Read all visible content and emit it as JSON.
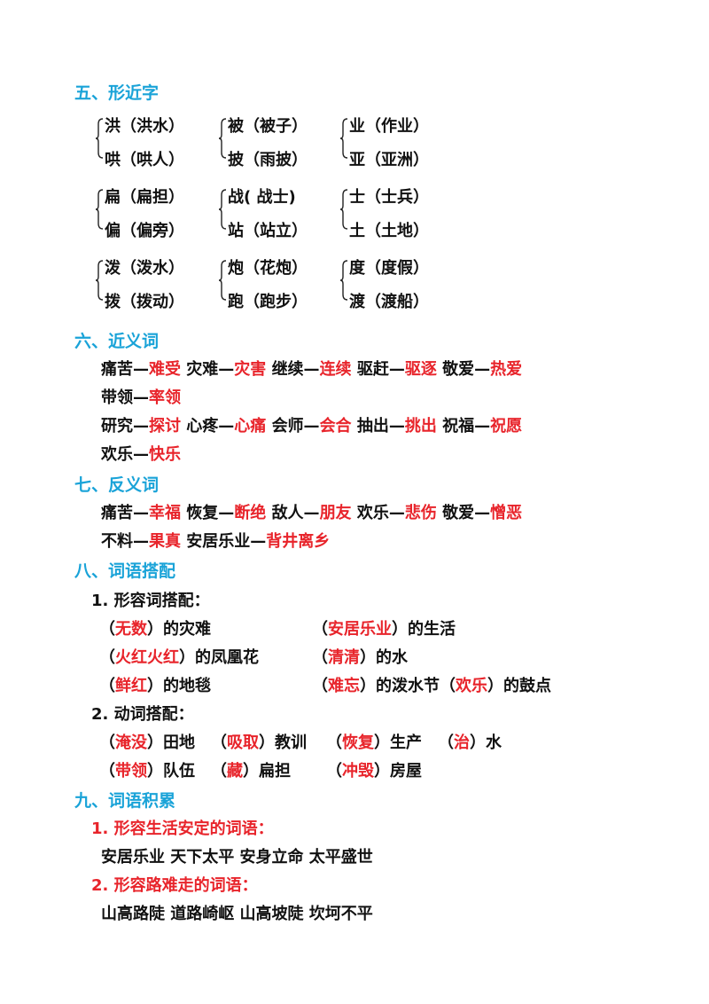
{
  "sections": {
    "s5": "五、形近字",
    "s6": "六、近义词",
    "s7": "七、反义词",
    "s8": "八、词语搭配",
    "s9": "九、词语积累"
  },
  "xingjin": [
    {
      "groups": [
        [
          "洪（洪水）",
          "哄（哄人）"
        ],
        [
          "被（被子）",
          "披（雨披）"
        ],
        [
          "业（作业）",
          "亚（亚洲）"
        ]
      ]
    },
    {
      "groups": [
        [
          "扁（扁担）",
          "偏（偏旁）"
        ],
        [
          "战( 战士)",
          "站（站立）"
        ],
        [
          "士（士兵）",
          "土（土地）"
        ]
      ]
    },
    {
      "groups": [
        [
          "泼（泼水）",
          "拨（拨动）"
        ],
        [
          "炮（花炮）",
          "跑（跑步）"
        ],
        [
          "度（度假）",
          "渡（渡船）"
        ]
      ]
    }
  ],
  "jinyi": [
    [
      [
        "痛苦—",
        "难受"
      ],
      [
        "灾难—",
        "灾害"
      ],
      [
        "继续—",
        "连续"
      ],
      [
        "驱赶—",
        "驱逐"
      ],
      [
        "敬爱—",
        "热爱"
      ]
    ],
    [
      [
        "带领—",
        "率领"
      ]
    ],
    [
      [
        "研究—",
        "探讨"
      ],
      [
        "心疼—",
        "心痛"
      ],
      [
        "会师—",
        "会合"
      ],
      [
        "抽出—",
        "挑出"
      ],
      [
        "祝福—",
        "祝愿"
      ]
    ],
    [
      [
        "欢乐—",
        "快乐"
      ]
    ]
  ],
  "fanyi": [
    [
      [
        "痛苦—",
        "幸福"
      ],
      [
        "恢复—",
        "断绝"
      ],
      [
        "敌人—",
        "朋友"
      ],
      [
        "欢乐—",
        "悲伤"
      ],
      [
        "敬爱—",
        "憎恶"
      ]
    ],
    [
      [
        "不料—",
        "果真"
      ],
      [
        "安居乐业—",
        "背井离乡"
      ]
    ]
  ],
  "dapei": {
    "adj_title": "1. 形容词搭配：",
    "adj": [
      [
        [
          "（",
          "无数",
          "）的灾难"
        ],
        [
          "（",
          "安居乐业",
          "）的生活"
        ]
      ],
      [
        [
          "（",
          "火红火红",
          "）的凤凰花"
        ],
        [
          "（",
          "清清",
          "）的水"
        ]
      ],
      [
        [
          "（",
          "鲜红",
          "）的地毯"
        ],
        [
          "（",
          "难忘",
          "）的泼水节（",
          "欢乐",
          "）的鼓点"
        ]
      ]
    ],
    "verb_title": "2. 动词搭配：",
    "verb": [
      [
        [
          "（",
          "淹没",
          "）田地"
        ],
        [
          "（",
          "吸取",
          "）教训"
        ],
        [
          "（",
          "恢复",
          "）生产"
        ],
        [
          "（",
          "治",
          "）水"
        ]
      ],
      [
        [
          "（",
          "带领",
          "）队伍"
        ],
        [
          "（",
          "藏",
          "）扁担"
        ],
        [
          "（",
          "冲毁",
          "）房屋"
        ]
      ]
    ]
  },
  "jilei": {
    "t1": "1. 形容生活安定的词语：",
    "w1": "安居乐业 天下太平 安身立命 太平盛世",
    "t2": "2. 形容路难走的词语：",
    "w2": "山高路陡 道路崎岖 山高坡陡 坎坷不平"
  }
}
